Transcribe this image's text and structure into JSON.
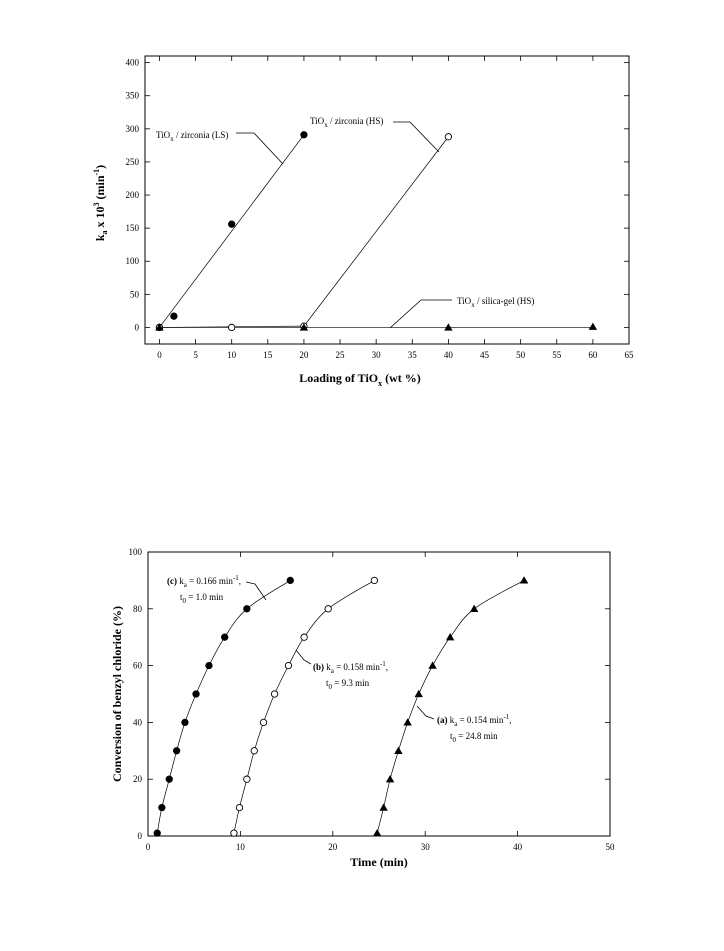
{
  "chart_data": [
    {
      "type": "scatter",
      "xlabel": "Loading of TiO",
      "xlabel_sub": "x",
      "xlabel_tail": " (wt %)",
      "ylabel": "k",
      "ylabel_sub": "a",
      "ylabel_tail": " x 10",
      "ylabel_sup": "3",
      "ylabel_end": " (min",
      "ylabel_sup2": "-1",
      "ylabel_close": ")",
      "xlim": [
        -2,
        65
      ],
      "ylim": [
        -25,
        410
      ],
      "x_ticks": [
        "0",
        "5",
        "10",
        "15",
        "20",
        "25",
        "30",
        "35",
        "40",
        "45",
        "50",
        "55",
        "60",
        "65"
      ],
      "y_ticks": [
        "0",
        "50",
        "100",
        "150",
        "200",
        "250",
        "300",
        "350",
        "400"
      ],
      "series": [
        {
          "name": "TiOx / zirconia (LS)",
          "label_main": "TiO",
          "label_sub": "x",
          "label_tail": " / zirconia (LS)",
          "marker": "filled-circle",
          "points": [
            [
              0,
              0
            ],
            [
              2,
              17
            ],
            [
              10,
              156
            ],
            [
              20,
              291
            ]
          ]
        },
        {
          "name": "TiOx / zirconia (HS)",
          "label_main": "TiO",
          "label_sub": "x",
          "label_tail": " / zirconia (HS)",
          "marker": "open-circle",
          "points": [
            [
              0,
              0
            ],
            [
              10,
              0
            ],
            [
              20,
              2
            ],
            [
              40,
              288
            ]
          ]
        },
        {
          "name": "TiOx / silica-gel (HS)",
          "label_main": "TiO",
          "label_sub": "x",
          "label_tail": " / silica-gel (HS)",
          "marker": "filled-triangle",
          "points": [
            [
              0,
              0
            ],
            [
              20,
              0
            ],
            [
              40,
              0
            ],
            [
              60,
              1
            ]
          ]
        }
      ]
    },
    {
      "type": "line",
      "xlabel": "Time (min)",
      "ylabel": "Conversion of benzyl chloride (%)",
      "xlim": [
        0,
        50
      ],
      "ylim": [
        0,
        100
      ],
      "x_ticks": [
        "0",
        "10",
        "20",
        "30",
        "40",
        "50"
      ],
      "y_ticks": [
        "0",
        "20",
        "40",
        "60",
        "80",
        "100"
      ],
      "series": [
        {
          "name": "(c)",
          "marker": "filled-circle",
          "ka": "0.166",
          "t0": "1.0",
          "points": [
            [
              1.0,
              1
            ],
            [
              1.5,
              10
            ],
            [
              2.3,
              20
            ],
            [
              3.1,
              30
            ],
            [
              4.0,
              40
            ],
            [
              5.2,
              50
            ],
            [
              6.6,
              60
            ],
            [
              8.3,
              70
            ],
            [
              10.7,
              80
            ],
            [
              15.4,
              90
            ]
          ]
        },
        {
          "name": "(b)",
          "marker": "open-circle",
          "ka": "0.158",
          "t0": "9.3",
          "points": [
            [
              9.3,
              1
            ],
            [
              9.9,
              10
            ],
            [
              10.7,
              20
            ],
            [
              11.5,
              30
            ],
            [
              12.5,
              40
            ],
            [
              13.7,
              50
            ],
            [
              15.2,
              60
            ],
            [
              16.9,
              70
            ],
            [
              19.5,
              80
            ],
            [
              24.5,
              90
            ]
          ]
        },
        {
          "name": "(a)",
          "marker": "filled-triangle",
          "ka": "0.154",
          "t0": "24.8",
          "points": [
            [
              24.8,
              1
            ],
            [
              25.5,
              10
            ],
            [
              26.2,
              20
            ],
            [
              27.1,
              30
            ],
            [
              28.1,
              40
            ],
            [
              29.3,
              50
            ],
            [
              30.8,
              60
            ],
            [
              32.7,
              70
            ],
            [
              35.3,
              80
            ],
            [
              40.7,
              90
            ]
          ]
        }
      ],
      "annotations": {
        "c": {
          "tag": "(c)",
          "k": "k",
          "ksub": "a",
          "kval": " = 0.166 min",
          "ksup": "-1",
          "tail": ",",
          "t": "t",
          "tsub": "0",
          "tval": " = 1.0 min"
        },
        "b": {
          "tag": "(b)",
          "k": "k",
          "ksub": "a",
          "kval": " = 0.158 min",
          "ksup": "-1",
          "tail": ",",
          "t": "t",
          "tsub": "0",
          "tval": " = 9.3 min"
        },
        "a": {
          "tag": "(a)",
          "k": "k",
          "ksub": "a",
          "kval": " = 0.154 min",
          "ksup": "-1",
          "tail": ",",
          "t": "t",
          "tsub": "0",
          "tval": " = 24.8 min"
        }
      }
    }
  ]
}
